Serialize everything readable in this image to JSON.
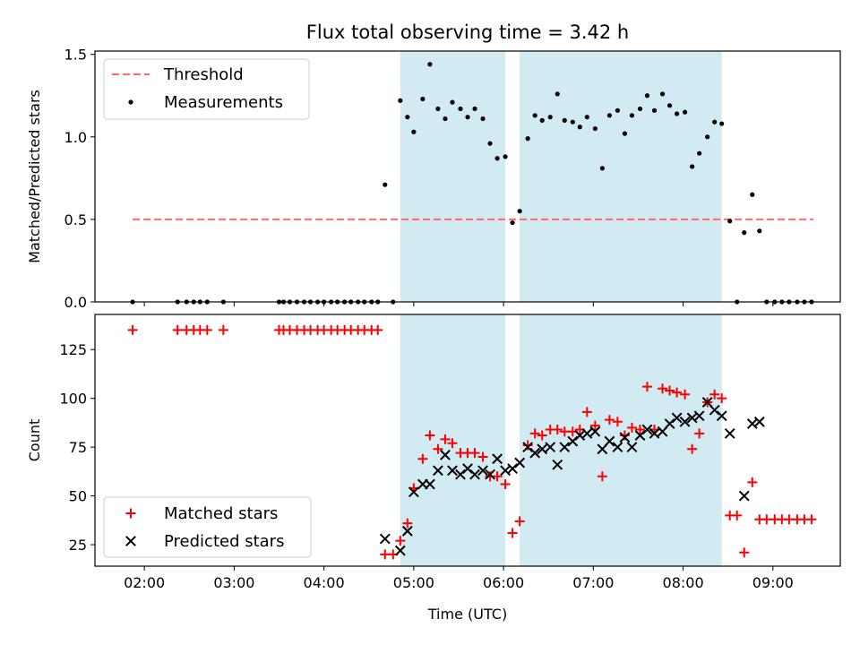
{
  "title": "Flux total observing time = 3.42 h",
  "colors": {
    "threshold": "#ff6b6b",
    "measurements": "#000000",
    "matched": "#ff0000",
    "predicted": "#000000",
    "observing_span": "#add8e6"
  },
  "chart_data": [
    {
      "type": "scatter",
      "xlabel": "",
      "ylabel": "Matched/Predicted stars",
      "xlim": [
        1.45,
        9.75
      ],
      "ylim": [
        0,
        1.52
      ],
      "yticks": [
        0.0,
        0.5,
        1.0,
        1.5
      ],
      "ytick_labels": [
        "0.0",
        "0.5",
        "1.0",
        "1.5"
      ],
      "x_tick_labels_shown": false,
      "grid": false,
      "legend": "upper-left",
      "shaded_spans": [
        [
          4.85,
          6.02
        ],
        [
          6.18,
          8.43
        ]
      ],
      "threshold": {
        "name": "Threshold",
        "y": 0.5,
        "x": [
          1.87,
          9.45
        ]
      },
      "series": [
        {
          "name": "Measurements",
          "marker": "dot",
          "points": [
            [
              1.87,
              0
            ],
            [
              2.37,
              0
            ],
            [
              2.47,
              0
            ],
            [
              2.55,
              0
            ],
            [
              2.62,
              0
            ],
            [
              2.7,
              0
            ],
            [
              2.88,
              0
            ],
            [
              3.5,
              0
            ],
            [
              3.55,
              0
            ],
            [
              3.62,
              0
            ],
            [
              3.7,
              0
            ],
            [
              3.78,
              0
            ],
            [
              3.85,
              0
            ],
            [
              3.93,
              0
            ],
            [
              4.0,
              0
            ],
            [
              4.08,
              0
            ],
            [
              4.15,
              0
            ],
            [
              4.23,
              0
            ],
            [
              4.3,
              0
            ],
            [
              4.38,
              0
            ],
            [
              4.45,
              0
            ],
            [
              4.53,
              0
            ],
            [
              4.6,
              0
            ],
            [
              4.68,
              0.71
            ],
            [
              4.77,
              0
            ],
            [
              4.85,
              1.22
            ],
            [
              4.93,
              1.12
            ],
            [
              5.0,
              1.03
            ],
            [
              5.1,
              1.23
            ],
            [
              5.18,
              1.44
            ],
            [
              5.27,
              1.17
            ],
            [
              5.35,
              1.11
            ],
            [
              5.43,
              1.21
            ],
            [
              5.52,
              1.17
            ],
            [
              5.6,
              1.12
            ],
            [
              5.68,
              1.17
            ],
            [
              5.77,
              1.11
            ],
            [
              5.85,
              0.96
            ],
            [
              5.93,
              0.87
            ],
            [
              6.02,
              0.88
            ],
            [
              6.1,
              0.48
            ],
            [
              6.18,
              0.55
            ],
            [
              6.27,
              0.99
            ],
            [
              6.35,
              1.13
            ],
            [
              6.43,
              1.1
            ],
            [
              6.52,
              1.12
            ],
            [
              6.6,
              1.26
            ],
            [
              6.68,
              1.1
            ],
            [
              6.77,
              1.09
            ],
            [
              6.85,
              1.06
            ],
            [
              6.93,
              1.12
            ],
            [
              7.02,
              1.05
            ],
            [
              7.1,
              0.81
            ],
            [
              7.18,
              1.13
            ],
            [
              7.27,
              1.16
            ],
            [
              7.35,
              1.02
            ],
            [
              7.43,
              1.13
            ],
            [
              7.52,
              1.17
            ],
            [
              7.6,
              1.25
            ],
            [
              7.68,
              1.16
            ],
            [
              7.77,
              1.26
            ],
            [
              7.85,
              1.19
            ],
            [
              7.93,
              1.14
            ],
            [
              8.02,
              1.15
            ],
            [
              8.1,
              0.82
            ],
            [
              8.18,
              0.9
            ],
            [
              8.27,
              1.0
            ],
            [
              8.35,
              1.09
            ],
            [
              8.43,
              1.08
            ],
            [
              8.52,
              0.49
            ],
            [
              8.6,
              0
            ],
            [
              8.68,
              0.42
            ],
            [
              8.77,
              0.65
            ],
            [
              8.85,
              0.43
            ],
            [
              8.93,
              0
            ],
            [
              9.02,
              0
            ],
            [
              9.1,
              0
            ],
            [
              9.18,
              0
            ],
            [
              9.27,
              0
            ],
            [
              9.35,
              0
            ],
            [
              9.43,
              0
            ]
          ]
        }
      ]
    },
    {
      "type": "scatter",
      "xlabel": "Time (UTC)",
      "ylabel": "Count",
      "xlim": [
        1.45,
        9.75
      ],
      "ylim": [
        14,
        143
      ],
      "xticks": [
        2,
        3,
        4,
        5,
        6,
        7,
        8,
        9
      ],
      "xtick_labels": [
        "02:00",
        "03:00",
        "04:00",
        "05:00",
        "06:00",
        "07:00",
        "08:00",
        "09:00"
      ],
      "yticks": [
        25,
        50,
        75,
        100,
        125
      ],
      "ytick_labels": [
        "25",
        "50",
        "75",
        "100",
        "125"
      ],
      "grid": false,
      "legend": "lower-left",
      "shaded_spans": [
        [
          4.85,
          6.02
        ],
        [
          6.18,
          8.43
        ]
      ],
      "series": [
        {
          "name": "Matched stars",
          "marker": "plus",
          "points": [
            [
              1.87,
              135
            ],
            [
              2.37,
              135
            ],
            [
              2.47,
              135
            ],
            [
              2.55,
              135
            ],
            [
              2.62,
              135
            ],
            [
              2.7,
              135
            ],
            [
              2.88,
              135
            ],
            [
              3.5,
              135
            ],
            [
              3.55,
              135
            ],
            [
              3.62,
              135
            ],
            [
              3.7,
              135
            ],
            [
              3.78,
              135
            ],
            [
              3.85,
              135
            ],
            [
              3.93,
              135
            ],
            [
              4.0,
              135
            ],
            [
              4.08,
              135
            ],
            [
              4.15,
              135
            ],
            [
              4.23,
              135
            ],
            [
              4.3,
              135
            ],
            [
              4.38,
              135
            ],
            [
              4.45,
              135
            ],
            [
              4.53,
              135
            ],
            [
              4.6,
              135
            ],
            [
              4.68,
              20
            ],
            [
              4.77,
              20
            ],
            [
              4.85,
              27
            ],
            [
              4.93,
              36
            ],
            [
              5.0,
              54
            ],
            [
              5.1,
              69
            ],
            [
              5.18,
              81
            ],
            [
              5.27,
              74
            ],
            [
              5.35,
              79
            ],
            [
              5.43,
              77
            ],
            [
              5.52,
              72
            ],
            [
              5.6,
              72
            ],
            [
              5.68,
              72
            ],
            [
              5.77,
              70
            ],
            [
              5.85,
              60
            ],
            [
              5.93,
              60
            ],
            [
              6.02,
              56
            ],
            [
              6.1,
              31
            ],
            [
              6.18,
              37
            ],
            [
              6.27,
              76
            ],
            [
              6.35,
              82
            ],
            [
              6.43,
              81
            ],
            [
              6.52,
              84
            ],
            [
              6.6,
              84
            ],
            [
              6.68,
              83
            ],
            [
              6.77,
              83
            ],
            [
              6.85,
              84
            ],
            [
              6.93,
              93
            ],
            [
              7.02,
              86
            ],
            [
              7.1,
              60
            ],
            [
              7.18,
              89
            ],
            [
              7.27,
              88
            ],
            [
              7.35,
              81
            ],
            [
              7.43,
              85
            ],
            [
              7.52,
              84
            ],
            [
              7.6,
              106
            ],
            [
              7.68,
              84
            ],
            [
              7.77,
              105
            ],
            [
              7.85,
              104
            ],
            [
              7.93,
              103
            ],
            [
              8.02,
              102
            ],
            [
              8.1,
              74
            ],
            [
              8.18,
              82
            ],
            [
              8.27,
              98
            ],
            [
              8.35,
              102
            ],
            [
              8.43,
              100
            ],
            [
              8.52,
              40
            ],
            [
              8.6,
              40
            ],
            [
              8.68,
              21
            ],
            [
              8.77,
              57
            ],
            [
              8.85,
              38
            ],
            [
              8.93,
              38
            ],
            [
              9.02,
              38
            ],
            [
              9.1,
              38
            ],
            [
              9.18,
              38
            ],
            [
              9.27,
              38
            ],
            [
              9.35,
              38
            ],
            [
              9.43,
              38
            ]
          ]
        },
        {
          "name": "Predicted stars",
          "marker": "x",
          "points": [
            [
              4.68,
              28
            ],
            [
              4.85,
              22
            ],
            [
              4.93,
              32
            ],
            [
              5.0,
              52
            ],
            [
              5.1,
              56
            ],
            [
              5.18,
              56
            ],
            [
              5.27,
              63
            ],
            [
              5.35,
              71
            ],
            [
              5.43,
              63
            ],
            [
              5.52,
              61
            ],
            [
              5.6,
              64
            ],
            [
              5.68,
              61
            ],
            [
              5.77,
              63
            ],
            [
              5.85,
              61
            ],
            [
              5.93,
              69
            ],
            [
              6.02,
              63
            ],
            [
              6.1,
              64
            ],
            [
              6.18,
              67
            ],
            [
              6.27,
              75
            ],
            [
              6.35,
              72
            ],
            [
              6.43,
              74
            ],
            [
              6.52,
              75
            ],
            [
              6.6,
              66
            ],
            [
              6.68,
              75
            ],
            [
              6.77,
              78
            ],
            [
              6.85,
              81
            ],
            [
              6.93,
              82
            ],
            [
              7.02,
              83
            ],
            [
              7.1,
              74
            ],
            [
              7.18,
              78
            ],
            [
              7.27,
              75
            ],
            [
              7.35,
              80
            ],
            [
              7.43,
              75
            ],
            [
              7.52,
              81
            ],
            [
              7.6,
              84
            ],
            [
              7.68,
              82
            ],
            [
              7.77,
              83
            ],
            [
              7.85,
              87
            ],
            [
              7.93,
              90
            ],
            [
              8.02,
              88
            ],
            [
              8.1,
              90
            ],
            [
              8.18,
              91
            ],
            [
              8.27,
              98
            ],
            [
              8.35,
              94
            ],
            [
              8.43,
              91
            ],
            [
              8.52,
              82
            ],
            [
              8.68,
              50
            ],
            [
              8.77,
              87
            ],
            [
              8.85,
              88
            ]
          ]
        }
      ]
    }
  ]
}
